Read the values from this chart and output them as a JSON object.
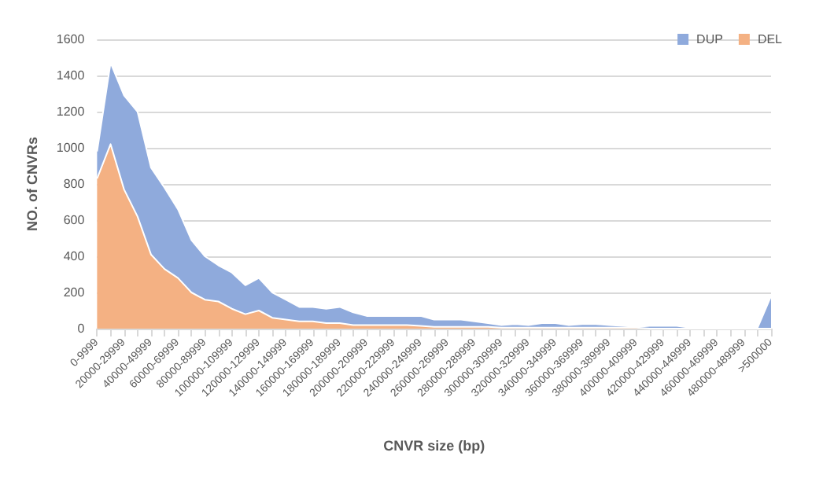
{
  "chart_data": {
    "type": "area",
    "stacked": true,
    "xlabel": "CNVR size (bp)",
    "ylabel": "NO. of CNVRs",
    "categories": [
      "0-9999",
      null,
      "20000-29999",
      null,
      "40000-49999",
      null,
      "60000-69999",
      null,
      "80000-89999",
      null,
      "100000-109999",
      null,
      "120000-129999",
      null,
      "140000-149999",
      null,
      "160000-169999",
      null,
      "180000-189999",
      null,
      "200000-209999",
      null,
      "220000-229999",
      null,
      "240000-249999",
      null,
      "260000-269999",
      null,
      "280000-289999",
      null,
      "300000-309999",
      null,
      "320000-329999",
      null,
      "340000-349999",
      null,
      "360000-369999",
      null,
      "380000-389999",
      null,
      "400000-409999",
      null,
      "420000-429999",
      null,
      "440000-449999",
      null,
      "460000-469999",
      null,
      "480000-489999",
      null,
      ">500000"
    ],
    "series": [
      {
        "name": "DEL",
        "color": "#f4b183",
        "values": [
          830,
          1020,
          770,
          620,
          410,
          330,
          280,
          200,
          160,
          150,
          110,
          80,
          100,
          60,
          50,
          40,
          40,
          30,
          30,
          20,
          20,
          20,
          20,
          20,
          15,
          10,
          10,
          10,
          10,
          10,
          5,
          5,
          5,
          5,
          5,
          5,
          5,
          5,
          5,
          5,
          5,
          0,
          0,
          0,
          0,
          0,
          0,
          0,
          0,
          0,
          0
        ]
      },
      {
        "name": "DUP",
        "color": "#8faadc",
        "values": [
          150,
          450,
          520,
          580,
          480,
          450,
          380,
          290,
          240,
          200,
          200,
          160,
          180,
          140,
          110,
          80,
          80,
          80,
          90,
          70,
          50,
          50,
          50,
          50,
          55,
          40,
          40,
          40,
          30,
          20,
          15,
          20,
          15,
          25,
          25,
          15,
          20,
          20,
          15,
          10,
          5,
          15,
          15,
          15,
          5,
          5,
          5,
          5,
          5,
          5,
          180
        ]
      }
    ],
    "ylim": [
      0,
      1600
    ],
    "yticks": [
      0,
      200,
      400,
      600,
      800,
      1000,
      1200,
      1400,
      1600
    ],
    "grid": "y",
    "legend": "top right"
  }
}
